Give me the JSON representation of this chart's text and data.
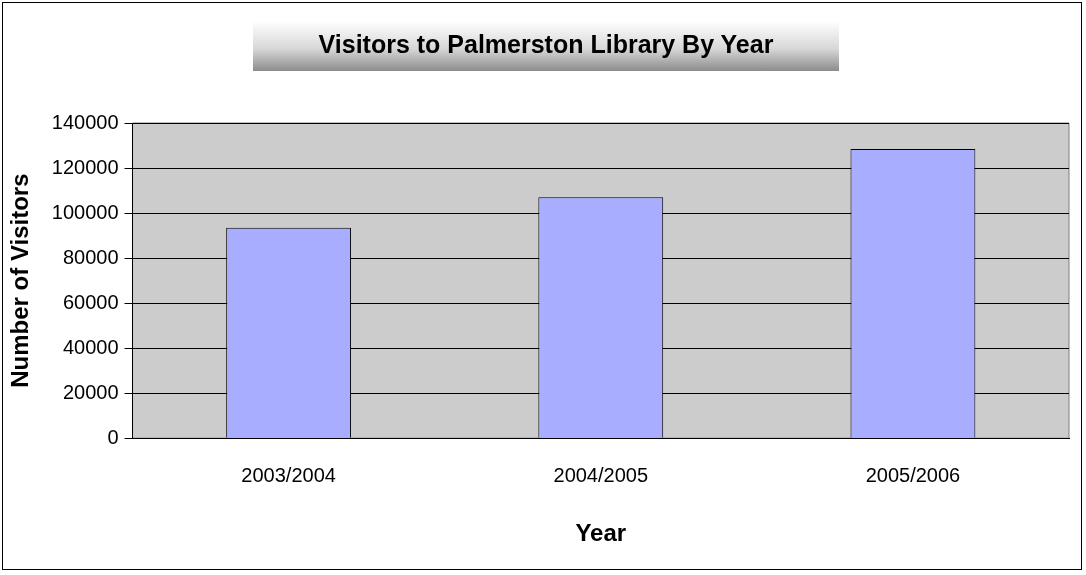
{
  "chart_data": {
    "type": "bar",
    "title": "Visitors to Palmerston Library By Year",
    "xlabel": "Year",
    "ylabel": "Number of Visitors",
    "categories": [
      "2003/2004",
      "2004/2005",
      "2005/2006"
    ],
    "values": [
      93500,
      107000,
      128500
    ],
    "color": "#a9adff",
    "ylim": [
      0,
      140000
    ],
    "yticks": [
      0,
      20000,
      40000,
      60000,
      80000,
      100000,
      120000,
      140000
    ],
    "grid": "y",
    "legend": false
  }
}
